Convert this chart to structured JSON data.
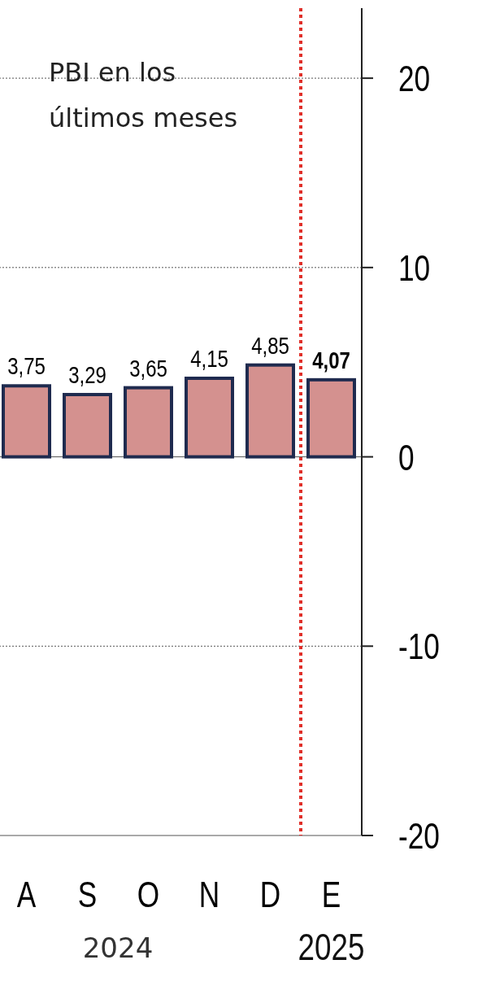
{
  "chart_data": {
    "type": "bar",
    "title": "PBI en los últimos meses",
    "categories": [
      "A",
      "S",
      "O",
      "N",
      "D",
      "E"
    ],
    "values": [
      3.75,
      3.29,
      3.65,
      4.15,
      4.85,
      4.07
    ],
    "color": "#d4918f",
    "value_labels": [
      "3,75",
      "3,29",
      "3,65",
      "4,15",
      "4,85",
      "4,07"
    ],
    "ylim": [
      -20,
      23.7
    ],
    "yticks": [
      -20,
      -10,
      0,
      10,
      20
    ],
    "grid": "y",
    "ref_lines": [
      {
        "axis": "x",
        "value": "E",
        "color": "#e0302a",
        "line_style": "dotted"
      }
    ],
    "annotations": [
      "2024",
      "2025"
    ]
  }
}
